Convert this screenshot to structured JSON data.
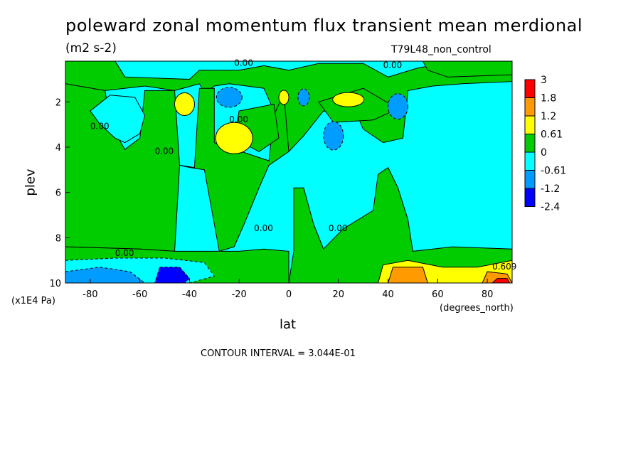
{
  "title": "poleward zonal momentum flux transient mean merdional",
  "units": "(m2 s-2)",
  "experiment": "T79L48_non_control",
  "contour_interval": "CONTOUR INTERVAL = 3.044E-01",
  "chart_data": {
    "type": "heatmap",
    "title": "poleward zonal momentum flux transient mean merdional",
    "xlabel": "lat",
    "xunits": "(degrees_north)",
    "ylabel": "plev",
    "yunits": "(x1E4 Pa)",
    "xlim": [
      -90,
      90
    ],
    "ylim": [
      10,
      0.2
    ],
    "x_ticks": [
      -80,
      -60,
      -40,
      -20,
      0,
      20,
      40,
      60,
      80
    ],
    "x_tick_labels": [
      "-80",
      "-60",
      "-40",
      "-20",
      "0",
      "20",
      "40",
      "60",
      "80"
    ],
    "y_ticks": [
      2,
      4,
      6,
      8,
      10
    ],
    "y_tick_labels": [
      "2",
      "4",
      "6",
      "8",
      "10"
    ],
    "contour_labels": [
      "0.00",
      "0.00",
      "0.00",
      "0.00",
      "0.00",
      "0.00",
      "0.00",
      "0.00",
      "0.609"
    ],
    "colorbar": {
      "labels": [
        "3",
        "1.8",
        "1.2",
        "0.61",
        "0",
        "-0.61",
        "-1.2",
        "-2.4"
      ],
      "colors": [
        "#ff0000",
        "#ff9a00",
        "#ffff00",
        "#00cc00",
        "#00ffff",
        "#009cff",
        "#0000ff"
      ]
    },
    "regions": [
      {
        "level": "0 to 0.61",
        "note": "positive flux band",
        "lat_range": [
          -90,
          90
        ],
        "plev_range": [
          0.2,
          10
        ]
      },
      {
        "level": "1.2 to 1.8",
        "lat_center": 45,
        "plev_center": 9.7
      },
      {
        "level": "1.8 to 3",
        "lat_center": 83,
        "plev_center": 9.8
      },
      {
        "level": "-1.2 to -2.4",
        "lat_center": -47,
        "plev_center": 9.7
      }
    ]
  }
}
